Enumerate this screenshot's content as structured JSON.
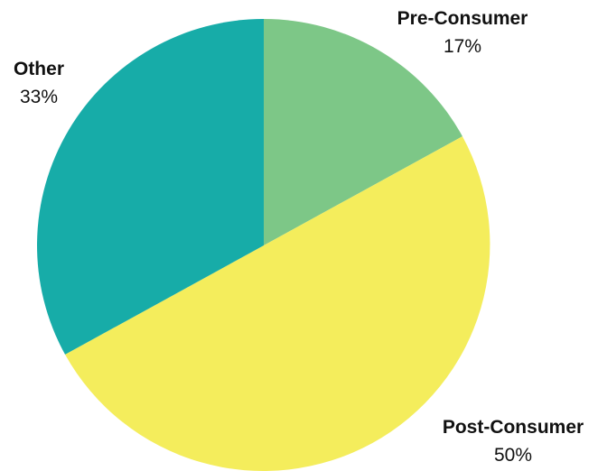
{
  "chart_data": {
    "type": "pie",
    "title": "",
    "slices": [
      {
        "label": "Pre-Consumer",
        "value": 17,
        "display": "17%",
        "color": "#7DC787"
      },
      {
        "label": "Post-Consumer",
        "value": 50,
        "display": "50%",
        "color": "#F4ED5C"
      },
      {
        "label": "Other",
        "value": 33,
        "display": "33%",
        "color": "#17ACA8"
      }
    ],
    "start_angle": "12 o'clock",
    "direction": "clockwise",
    "legend": "none"
  }
}
